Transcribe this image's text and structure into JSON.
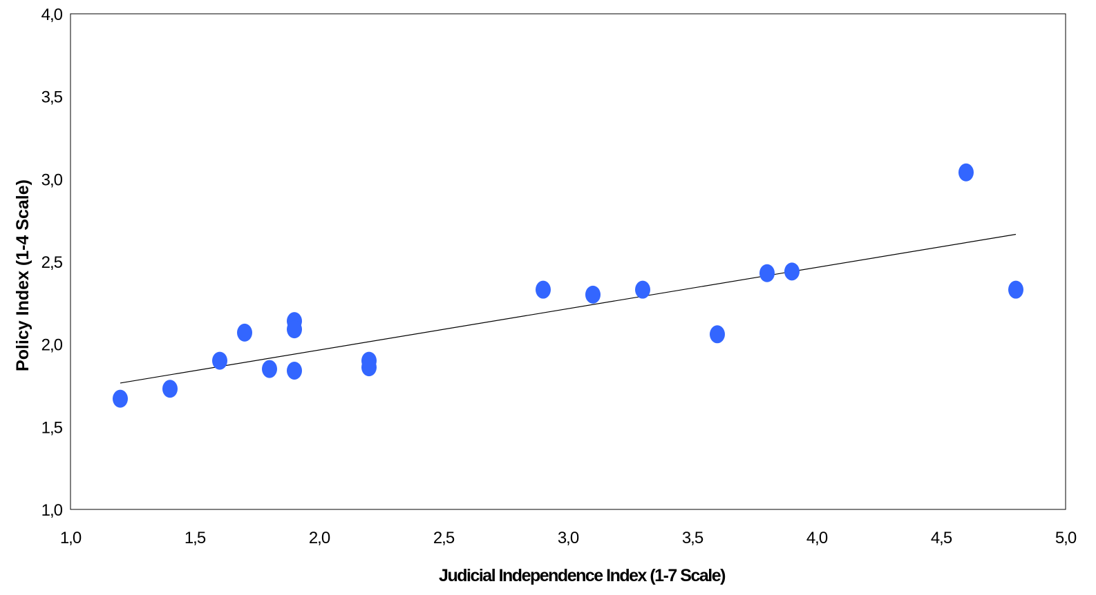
{
  "chart_data": {
    "type": "scatter",
    "title": "",
    "xlabel": "Judicial Independence Index (1-7 Scale)",
    "ylabel": "Policy Index (1-4 Scale)",
    "xlim": [
      1.0,
      5.0
    ],
    "ylim": [
      1.0,
      4.0
    ],
    "x_ticks": [
      "1,0",
      "1,5",
      "2,0",
      "2,5",
      "3,0",
      "3,5",
      "4,0",
      "4,5",
      "5,0"
    ],
    "y_ticks": [
      "1,0",
      "1,5",
      "2,0",
      "2,5",
      "3,0",
      "3,5",
      "4,0"
    ],
    "grid": false,
    "legend": "none",
    "marker_color": "#3366ff",
    "trendline_color": "#000000",
    "points": [
      {
        "x": 1.2,
        "y": 1.67
      },
      {
        "x": 1.4,
        "y": 1.73
      },
      {
        "x": 1.6,
        "y": 1.9
      },
      {
        "x": 1.7,
        "y": 2.07
      },
      {
        "x": 1.8,
        "y": 1.85
      },
      {
        "x": 1.9,
        "y": 2.14
      },
      {
        "x": 1.9,
        "y": 2.09
      },
      {
        "x": 1.9,
        "y": 1.84
      },
      {
        "x": 2.2,
        "y": 1.9
      },
      {
        "x": 2.2,
        "y": 1.86
      },
      {
        "x": 2.9,
        "y": 2.33
      },
      {
        "x": 3.1,
        "y": 2.3
      },
      {
        "x": 3.3,
        "y": 2.33
      },
      {
        "x": 3.6,
        "y": 2.06
      },
      {
        "x": 3.8,
        "y": 2.43
      },
      {
        "x": 3.9,
        "y": 2.44
      },
      {
        "x": 4.6,
        "y": 3.04
      },
      {
        "x": 4.8,
        "y": 2.33
      }
    ],
    "trendline": {
      "x": [
        1.2,
        4.8
      ],
      "y": [
        1.765,
        2.665
      ]
    }
  }
}
